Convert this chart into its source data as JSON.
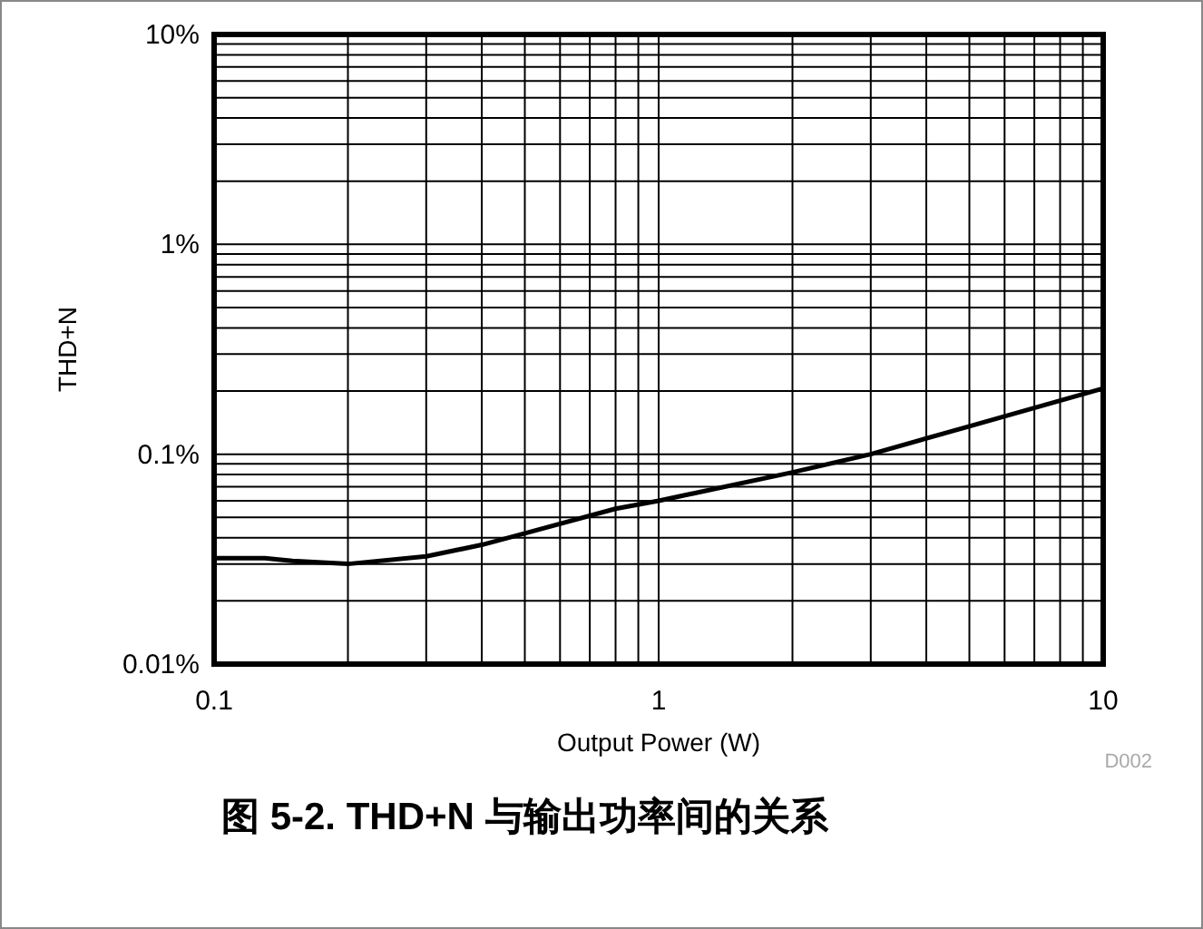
{
  "chart_data": {
    "type": "line",
    "xlabel": "Output Power (W)",
    "ylabel": "THD+N",
    "log": "xy",
    "grid": true,
    "xlim": [
      0.1,
      10
    ],
    "xticks": [
      0.1,
      1,
      10
    ],
    "ylim": [
      0.01,
      10
    ],
    "yticks": [
      {
        "value": 0.01,
        "label": "0.01%"
      },
      {
        "value": 0.1,
        "label": "0.1%"
      },
      {
        "value": 1,
        "label": "1%"
      },
      {
        "value": 10,
        "label": "10%"
      }
    ],
    "series": [
      {
        "color": "#000000",
        "x": [
          0.1,
          0.13,
          0.15,
          0.2,
          0.3,
          0.4,
          0.5,
          0.8,
          1,
          2,
          3,
          5,
          10
        ],
        "values": [
          0.032,
          0.032,
          0.031,
          0.03,
          0.0326,
          0.037,
          0.042,
          0.055,
          0.06,
          0.082,
          0.1,
          0.136,
          0.206
        ]
      }
    ],
    "annotations": [
      "D002",
      "图 5-2. THD+N 与输出功率间的关系"
    ]
  }
}
